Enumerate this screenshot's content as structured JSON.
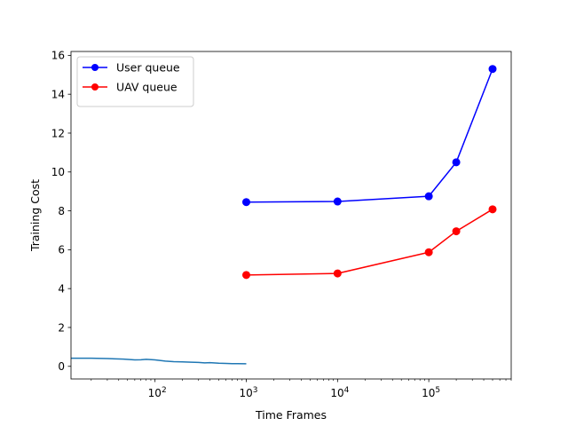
{
  "chart_data": {
    "type": "line",
    "title": "",
    "xlabel": "Time Frames",
    "ylabel": "Training Cost",
    "xscale": "log",
    "xlim": [
      12,
      800000
    ],
    "ylim": [
      -0.65,
      16.2
    ],
    "x_ticks": [
      {
        "value": 100,
        "base": "10",
        "exp": "2"
      },
      {
        "value": 1000,
        "base": "10",
        "exp": "3"
      },
      {
        "value": 10000,
        "base": "10",
        "exp": "4"
      },
      {
        "value": 100000,
        "base": "10",
        "exp": "5"
      }
    ],
    "y_ticks": [
      "0",
      "2",
      "4",
      "6",
      "8",
      "10",
      "12",
      "14",
      "16"
    ],
    "grid": false,
    "legend_position": "top-left",
    "series": [
      {
        "name": "User queue",
        "color": "#0000ff",
        "marker": "circle",
        "x": [
          1000,
          10000,
          100000,
          200000,
          500000
        ],
        "y": [
          8.45,
          8.48,
          8.75,
          10.5,
          15.3
        ]
      },
      {
        "name": "UAV queue",
        "color": "#ff0000",
        "marker": "circle",
        "x": [
          1000,
          10000,
          100000,
          200000,
          500000
        ],
        "y": [
          4.7,
          4.78,
          5.87,
          6.95,
          8.08
        ]
      },
      {
        "name": "",
        "color": "#1f77b4",
        "marker": "none",
        "x": [
          12,
          20,
          30,
          45,
          60,
          70,
          80,
          100,
          130,
          160,
          200,
          250,
          300,
          350,
          400,
          500,
          600,
          700,
          800,
          1000
        ],
        "y": [
          0.42,
          0.42,
          0.4,
          0.37,
          0.33,
          0.34,
          0.36,
          0.33,
          0.27,
          0.24,
          0.23,
          0.21,
          0.2,
          0.18,
          0.19,
          0.16,
          0.15,
          0.14,
          0.14,
          0.13
        ]
      }
    ]
  }
}
